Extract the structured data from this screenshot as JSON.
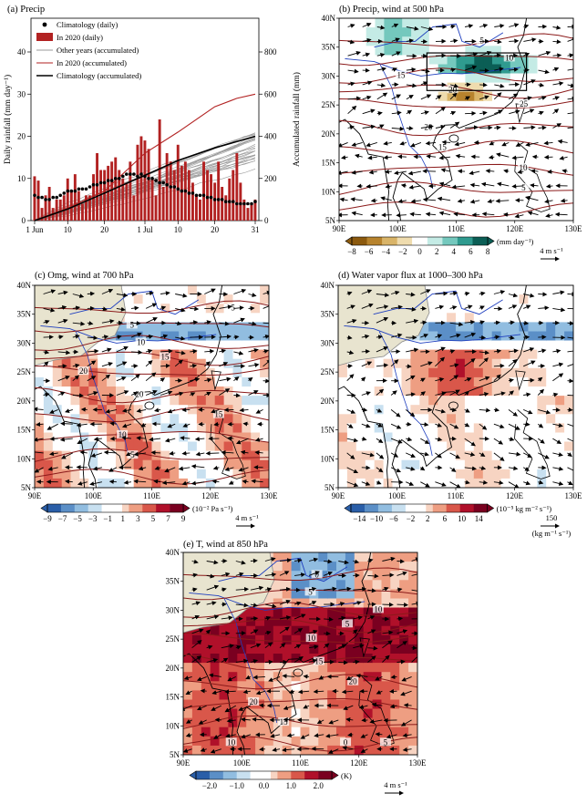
{
  "chart_data": [
    {
      "type": "bar",
      "title": "(a) Precip",
      "ylabel": "Daily rainfall (mm day⁻¹)",
      "y2label": "Accumulated rainfall (mm)",
      "xtick_labels": [
        "1 Jun",
        "10",
        "20",
        "1 Jul",
        "10",
        "20",
        "31"
      ],
      "xtick_days": [
        1,
        10,
        20,
        31,
        40,
        50,
        61
      ],
      "yticks": [
        0,
        10,
        20,
        30,
        40
      ],
      "y2ticks": [
        0,
        200,
        400,
        600,
        800
      ],
      "ylim": [
        0,
        48
      ],
      "y2lim": [
        0,
        960
      ],
      "legend": [
        {
          "label": "Climatology (daily)",
          "kind": "dot",
          "color": "#000000"
        },
        {
          "label": "In 2020 (daily)",
          "kind": "bar",
          "color": "#b22222"
        },
        {
          "label": "Other years (accumulated)",
          "kind": "line",
          "color": "#9a9a9a"
        },
        {
          "label": "In 2020 (accumulated)",
          "kind": "line",
          "color": "#b22222"
        },
        {
          "label": "Climatology (accumulated)",
          "kind": "line",
          "color": "#000000"
        }
      ],
      "series": [
        {
          "name": "In 2020 (daily)",
          "type": "bar",
          "values": [
            10.5,
            9.5,
            3,
            6,
            8,
            3,
            5,
            5,
            6,
            10,
            7,
            11,
            7,
            4,
            6,
            6,
            11,
            16,
            12,
            12,
            13,
            14,
            15,
            12,
            10,
            9,
            14,
            6,
            18,
            20,
            19,
            17,
            10,
            6,
            24,
            8,
            16,
            14,
            12,
            18,
            13,
            14,
            12,
            9,
            6,
            5,
            14,
            12,
            11,
            9,
            14,
            8,
            6,
            10,
            12,
            16,
            9,
            5,
            3,
            4,
            5
          ]
        },
        {
          "name": "Climatology (daily)",
          "type": "scatter",
          "values": [
            6,
            5.5,
            5.5,
            5,
            5,
            5.5,
            5.5,
            6,
            6.5,
            7,
            7,
            7,
            7.5,
            7.5,
            7.5,
            8,
            8.5,
            8.5,
            9,
            9,
            9.5,
            9.5,
            10,
            10,
            10.5,
            11,
            11,
            11,
            10.5,
            11,
            10.5,
            10,
            10,
            9.5,
            9,
            9,
            8.5,
            8,
            8,
            7.5,
            7,
            7,
            6.5,
            6.5,
            6,
            6,
            6,
            5.5,
            5.5,
            5,
            5,
            5,
            4.5,
            4.5,
            4.5,
            4,
            4,
            4,
            4,
            4,
            4.5
          ]
        },
        {
          "name": "In 2020 (accumulated)",
          "type": "line",
          "x": [
            1,
            10,
            20,
            31,
            40,
            50,
            56,
            61
          ],
          "values": [
            0,
            60,
            140,
            320,
            420,
            540,
            580,
            600
          ]
        },
        {
          "name": "Climatology (accumulated)",
          "type": "line",
          "x": [
            1,
            10,
            20,
            31,
            40,
            50,
            61
          ],
          "values": [
            0,
            55,
            130,
            215,
            285,
            345,
            400
          ]
        }
      ]
    },
    {
      "type": "heatmap",
      "title": "(b) Precip, wind at 500 hPa",
      "colorbar_ticks": [
        "−8",
        "−6",
        "−4",
        "−2",
        "0",
        "2",
        "4",
        "6",
        "8"
      ],
      "colorbar_unit": "(mm day⁻¹)",
      "vector_ref": "4 m s⁻¹",
      "contour_labels": [
        "5",
        "10",
        "15",
        "20",
        "25",
        "20",
        "15",
        "10",
        "5"
      ]
    },
    {
      "type": "heatmap",
      "title": "(c) Omg, wind at 700 hPa",
      "colorbar_ticks": [
        "−9",
        "−7",
        "−5",
        "−3",
        "−1",
        "1",
        "3",
        "5",
        "7",
        "9"
      ],
      "colorbar_unit": "(10⁻² Pa s⁻¹)",
      "vector_ref": "4 m s⁻¹",
      "contour_labels": [
        "5",
        "5",
        "10",
        "15",
        "20",
        "20",
        "15",
        "10",
        "5"
      ]
    },
    {
      "type": "heatmap",
      "title": "(d) Water vapor flux at 1000–300 hPa",
      "colorbar_ticks": [
        "−14",
        "−10",
        "−6",
        "−2",
        "2",
        "6",
        "10",
        "14"
      ],
      "colorbar_unit": "(10⁻⁵ kg m⁻² s⁻¹)",
      "vector_ref": "150",
      "vector_ref_unit": "(kg m⁻¹ s⁻¹)"
    },
    {
      "type": "heatmap",
      "title": "(e) T, wind at 850 hPa",
      "colorbar_ticks": [
        "−2.0",
        "−1.0",
        "0.0",
        "1.0",
        "2.0"
      ],
      "colorbar_unit": "(K)",
      "vector_ref": "4 m s⁻¹",
      "contour_labels": [
        "0",
        "5",
        "10",
        "5",
        "10",
        "15",
        "20",
        "20",
        "15",
        "10",
        "5",
        "0"
      ]
    }
  ],
  "map_axes": {
    "lon_labels": [
      "90E",
      "100E",
      "110E",
      "120E",
      "130E"
    ],
    "lat_labels": [
      "5N",
      "10N",
      "15N",
      "20N",
      "25N",
      "30N",
      "35N",
      "40N"
    ]
  },
  "colors": {
    "bar": "#b22222",
    "accum_2020": "#b22222",
    "other_years": "#9a9a9a",
    "contour": "#8b1a1a",
    "river": "#1f3fbf",
    "land_mask": "#e8e4cf",
    "brown_green": [
      "#8c5a0e",
      "#b7832d",
      "#d9b468",
      "#efdcae",
      "#ffffff",
      "#c4ebe5",
      "#74c8bd",
      "#2f9b8f",
      "#0b5e55"
    ],
    "blue_red": [
      "#2a5ea8",
      "#5b8fc7",
      "#91bde0",
      "#c8e0f0",
      "#ffffff",
      "#f7d4c2",
      "#ee9e82",
      "#d9574a",
      "#b0102a",
      "#7a0020"
    ]
  }
}
